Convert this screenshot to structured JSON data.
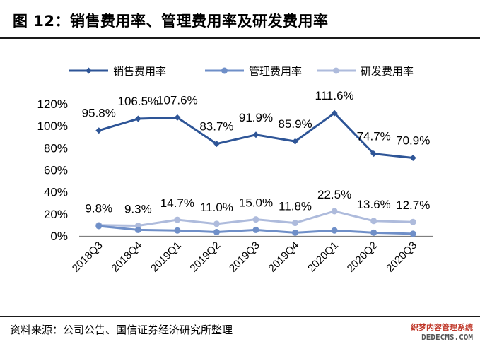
{
  "title": "图 12：销售费用率、管理费用率及研发费用率",
  "source": "资料来源：公司公告、国信证券经济研究所整理",
  "watermark": {
    "line1": "织梦内容管理系统",
    "line2": "DEDECMS.COM"
  },
  "chart_data": {
    "type": "line",
    "categories": [
      "2018Q3",
      "2018Q4",
      "2019Q1",
      "2019Q2",
      "2019Q3",
      "2019Q4",
      "2020Q1",
      "2020Q2",
      "2020Q3"
    ],
    "ylim": [
      0,
      120
    ],
    "yticks": [
      0,
      20,
      40,
      60,
      80,
      100,
      120
    ],
    "ytick_labels": [
      "0%",
      "20%",
      "40%",
      "60%",
      "80%",
      "100%",
      "120%"
    ],
    "legend_position": "top",
    "grid": false,
    "series": [
      {
        "name": "销售费用率",
        "color": "#2e5597",
        "values": [
          95.8,
          106.5,
          107.6,
          83.7,
          91.9,
          85.9,
          111.6,
          74.7,
          70.9
        ],
        "labels": [
          "95.8%",
          "106.5%",
          "107.6%",
          "83.7%",
          "91.9%",
          "85.9%",
          "111.6%",
          "74.7%",
          "70.9%"
        ]
      },
      {
        "name": "管理费用率",
        "color": "#6f8fc8",
        "values": [
          9.0,
          5.5,
          5.0,
          3.5,
          5.5,
          3.0,
          5.0,
          3.0,
          2.0
        ],
        "labels": []
      },
      {
        "name": "研发费用率",
        "color": "#aebbdc",
        "values": [
          9.8,
          9.3,
          14.7,
          11.0,
          15.0,
          11.8,
          22.5,
          13.6,
          12.7
        ],
        "labels": [
          "9.8%",
          "9.3%",
          "14.7%",
          "11.0%",
          "15.0%",
          "11.8%",
          "22.5%",
          "13.6%",
          "12.7%"
        ]
      }
    ]
  }
}
